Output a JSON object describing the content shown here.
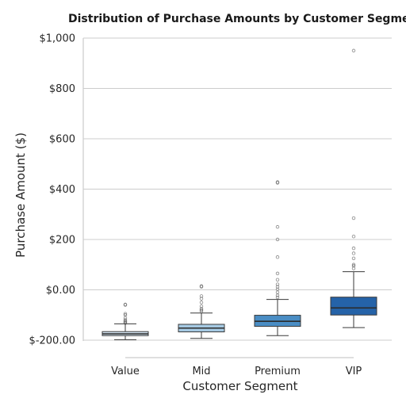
{
  "chart_data": {
    "type": "box",
    "title": "Distribution of Purchase Amounts by Customer Segment",
    "xlabel": "Customer Segment",
    "ylabel": "Purchase Amount ($)",
    "ylim": [
      -200,
      1000
    ],
    "y_ticks": [
      {
        "value": -200,
        "label": "$-200.00"
      },
      {
        "value": 0,
        "label": "$0.00"
      },
      {
        "value": 200,
        "label": "$200"
      },
      {
        "value": 400,
        "label": "$400"
      },
      {
        "value": 600,
        "label": "$600"
      },
      {
        "value": 800,
        "label": "$800"
      },
      {
        "value": 1000,
        "label": "$1,000"
      }
    ],
    "grid": true,
    "categories": [
      "Value",
      "Mid",
      "Premium",
      "VIP"
    ],
    "colors": [
      "#d6e6f4",
      "#a5c9e2",
      "#4a8dc4",
      "#2563a8"
    ],
    "boxes": [
      {
        "category": "Value",
        "whisker_low": -198,
        "q1": -182,
        "median": -175,
        "q3": -166,
        "whisker_high": -135,
        "outliers": [
          -132,
          -128,
          -125,
          -120,
          -112,
          -100,
          -95,
          -60,
          -58
        ]
      },
      {
        "category": "Mid",
        "whisker_low": -193,
        "q1": -167,
        "median": -152,
        "q3": -137,
        "whisker_high": -92,
        "outliers": [
          -85,
          -80,
          -75,
          -65,
          -50,
          -35,
          -25,
          12,
          15
        ]
      },
      {
        "category": "Premium",
        "whisker_low": -182,
        "q1": -145,
        "median": -125,
        "q3": -101,
        "whisker_high": -38,
        "outliers": [
          -30,
          -22,
          -10,
          2,
          12,
          22,
          40,
          65,
          130,
          200,
          250,
          425,
          428
        ]
      },
      {
        "category": "VIP",
        "whisker_low": -150,
        "q1": -100,
        "median": -72,
        "q3": -29,
        "whisker_high": 72,
        "outliers": [
          85,
          95,
          100,
          125,
          145,
          165,
          212,
          285,
          950
        ]
      }
    ]
  }
}
